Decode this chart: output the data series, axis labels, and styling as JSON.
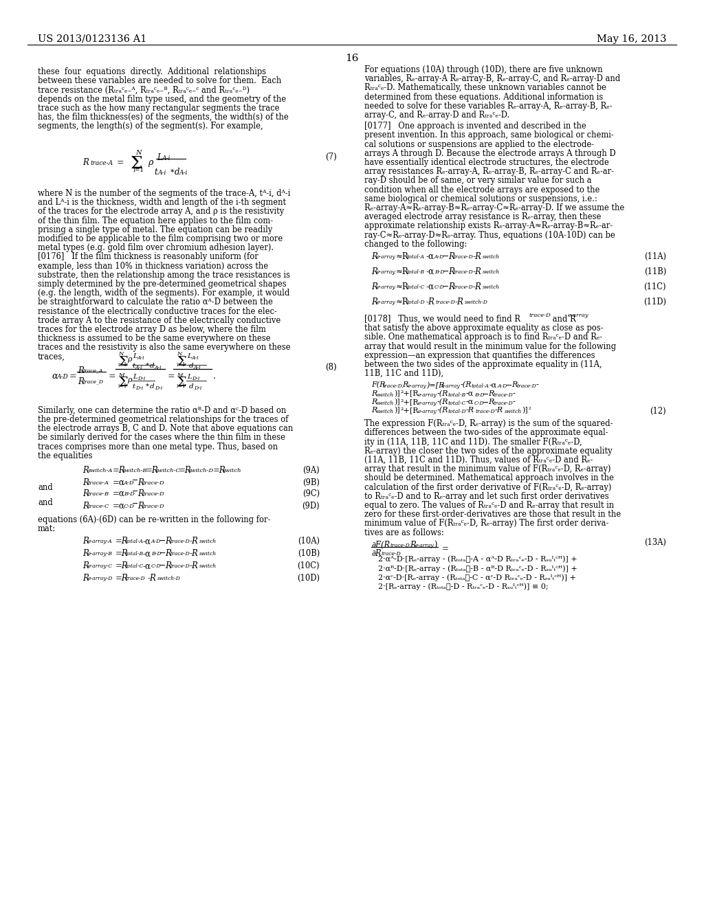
{
  "background_color": "#ffffff",
  "header_left": "US 2013/0123136 A1",
  "header_right": "May 16, 2013",
  "page_number": "16",
  "font_color": "#000000"
}
